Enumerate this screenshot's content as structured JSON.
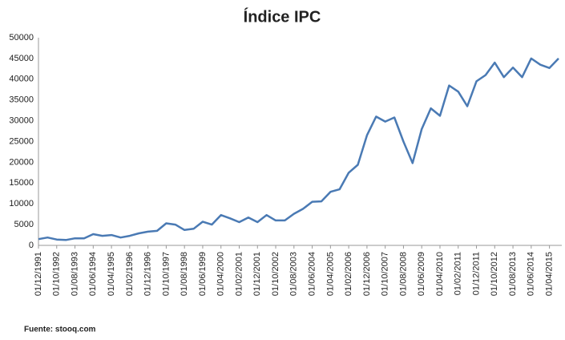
{
  "chart_data": {
    "type": "line",
    "title": "Índice IPC",
    "source": "Fuente: stooq.com",
    "categories": [
      "01/12/1991",
      null,
      "01/10/1992",
      null,
      "01/08/1993",
      null,
      "01/06/1994",
      null,
      "01/04/1995",
      null,
      "01/02/1996",
      null,
      "01/12/1996",
      null,
      "01/10/1997",
      null,
      "01/08/1998",
      null,
      "01/06/1999",
      null,
      "01/04/2000",
      null,
      "01/02/2001",
      null,
      "01/12/2001",
      null,
      "01/10/2002",
      null,
      "01/08/2003",
      null,
      "01/06/2004",
      null,
      "01/04/2005",
      null,
      "01/02/2006",
      null,
      "01/12/2006",
      null,
      "01/10/2007",
      null,
      "01/08/2008",
      null,
      "01/06/2009",
      null,
      "01/04/2010",
      null,
      "01/02/2011",
      null,
      "01/12/2011",
      null,
      "01/10/2012",
      null,
      "01/08/2013",
      null,
      "01/06/2014",
      null,
      "01/04/2015",
      null
    ],
    "values": [
      1500,
      1900,
      1400,
      1300,
      1700,
      1700,
      2700,
      2300,
      2500,
      1900,
      2300,
      2900,
      3300,
      3500,
      5300,
      5000,
      3700,
      4000,
      5700,
      5000,
      7300,
      6500,
      5600,
      6700,
      5600,
      7300,
      6000,
      6000,
      7600,
      8800,
      10500,
      10600,
      12900,
      13500,
      17500,
      19400,
      26500,
      31000,
      29800,
      30800,
      25000,
      19800,
      28000,
      33000,
      31200,
      38500,
      37000,
      33500,
      39500,
      41000,
      44000,
      40500,
      42800,
      40500,
      45000,
      43500,
      42700,
      45000
    ],
    "color": "#4a7ab4",
    "ylim": [
      0,
      50000
    ],
    "yticks": [
      0,
      5000,
      10000,
      15000,
      20000,
      25000,
      30000,
      35000,
      40000,
      45000,
      50000
    ],
    "grid": false
  }
}
